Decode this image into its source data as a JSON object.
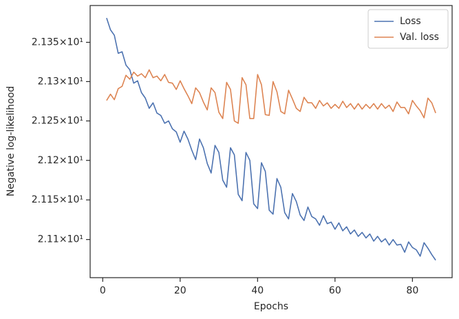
{
  "chart_data": {
    "type": "line",
    "xlabel": "Epochs",
    "ylabel": "Negative log-likelihood",
    "x": [
      1,
      2,
      3,
      4,
      5,
      6,
      7,
      8,
      9,
      10,
      11,
      12,
      13,
      14,
      15,
      16,
      17,
      18,
      19,
      20,
      21,
      22,
      23,
      24,
      25,
      26,
      27,
      28,
      29,
      30,
      31,
      32,
      33,
      34,
      35,
      36,
      37,
      38,
      39,
      40,
      41,
      42,
      43,
      44,
      45,
      46,
      47,
      48,
      49,
      50,
      51,
      52,
      53,
      54,
      55,
      56,
      57,
      58,
      59,
      60,
      61,
      62,
      63,
      64,
      65,
      66,
      67,
      68,
      69,
      70,
      71,
      72,
      73,
      74,
      75,
      76,
      77,
      78,
      79,
      80,
      81,
      82,
      83,
      84,
      85,
      86
    ],
    "series": [
      {
        "name": "Loss",
        "color": "#4c72b0",
        "values": [
          21.381,
          21.366,
          21.359,
          21.336,
          21.338,
          21.321,
          21.315,
          21.298,
          21.301,
          21.286,
          21.279,
          21.266,
          21.273,
          21.26,
          21.257,
          21.247,
          21.25,
          21.24,
          21.236,
          21.223,
          21.237,
          21.227,
          21.213,
          21.201,
          21.227,
          21.216,
          21.196,
          21.184,
          21.219,
          21.21,
          21.175,
          21.166,
          21.216,
          21.207,
          21.157,
          21.149,
          21.21,
          21.2,
          21.145,
          21.139,
          21.197,
          21.186,
          21.137,
          21.132,
          21.177,
          21.166,
          21.134,
          21.126,
          21.158,
          21.148,
          21.131,
          21.124,
          21.141,
          21.129,
          21.126,
          21.118,
          21.13,
          21.12,
          21.122,
          21.113,
          21.121,
          21.111,
          21.116,
          21.107,
          21.112,
          21.104,
          21.109,
          21.102,
          21.107,
          21.098,
          21.104,
          21.097,
          21.101,
          21.093,
          21.1,
          21.093,
          21.094,
          21.084,
          21.097,
          21.09,
          21.087,
          21.079,
          21.096,
          21.089,
          21.081,
          21.074
        ]
      },
      {
        "name": "Val. loss",
        "color": "#dd8452",
        "values": [
          21.276,
          21.284,
          21.277,
          21.291,
          21.294,
          21.308,
          21.303,
          21.312,
          21.307,
          21.31,
          21.305,
          21.315,
          21.305,
          21.307,
          21.301,
          21.309,
          21.299,
          21.298,
          21.29,
          21.301,
          21.291,
          21.282,
          21.272,
          21.292,
          21.286,
          21.274,
          21.264,
          21.292,
          21.286,
          21.261,
          21.253,
          21.299,
          21.29,
          21.25,
          21.247,
          21.305,
          21.296,
          21.253,
          21.253,
          21.309,
          21.296,
          21.258,
          21.257,
          21.3,
          21.287,
          21.262,
          21.259,
          21.289,
          21.278,
          21.266,
          21.262,
          21.28,
          21.273,
          21.273,
          21.266,
          21.276,
          21.269,
          21.273,
          21.266,
          21.271,
          21.266,
          21.275,
          21.267,
          21.272,
          21.265,
          21.272,
          21.265,
          21.271,
          21.266,
          21.272,
          21.265,
          21.272,
          21.266,
          21.27,
          21.262,
          21.274,
          21.267,
          21.267,
          21.259,
          21.276,
          21.269,
          21.263,
          21.254,
          21.279,
          21.273,
          21.26
        ]
      }
    ],
    "xlim": [
      -3.25,
      90.25
    ],
    "xticks": [
      0,
      20,
      40,
      60,
      80
    ],
    "ylim": [
      21.052,
      21.397
    ],
    "log_y": true,
    "yticks": [
      {
        "value": 21.1,
        "label": "2.11×10¹"
      },
      {
        "value": 21.15,
        "label": "2.115×10¹"
      },
      {
        "value": 21.2,
        "label": "2.12×10¹"
      },
      {
        "value": 21.25,
        "label": "2.125×10¹"
      },
      {
        "value": 21.3,
        "label": "2.13×10¹"
      },
      {
        "value": 21.35,
        "label": "2.135×10¹"
      }
    ],
    "grid": false,
    "legend": "upper right"
  }
}
